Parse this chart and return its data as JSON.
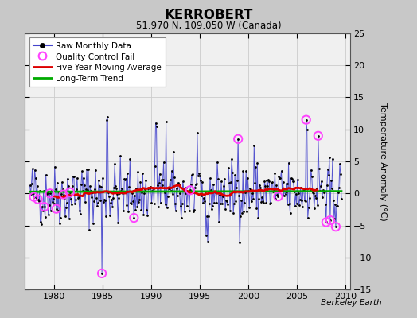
{
  "title": "KERROBERT",
  "subtitle": "51.970 N, 109.050 W (Canada)",
  "ylabel": "Temperature Anomaly (°C)",
  "watermark": "Berkeley Earth",
  "xlim": [
    1977.0,
    2010.5
  ],
  "ylim": [
    -15,
    25
  ],
  "yticks": [
    -15,
    -10,
    -5,
    0,
    5,
    10,
    15,
    20,
    25
  ],
  "xticks": [
    1980,
    1985,
    1990,
    1995,
    2000,
    2005,
    2010
  ],
  "plot_bg_color": "#f0f0f0",
  "fig_bg_color": "#c8c8c8",
  "raw_color": "#4444cc",
  "qc_color": "#ff44ff",
  "ma_color": "#dd0000",
  "trend_color": "#00aa00",
  "grid_color": "#cccccc",
  "seed": 42,
  "n_points": 390,
  "start_year": 1977.5,
  "end_year": 2009.583
}
